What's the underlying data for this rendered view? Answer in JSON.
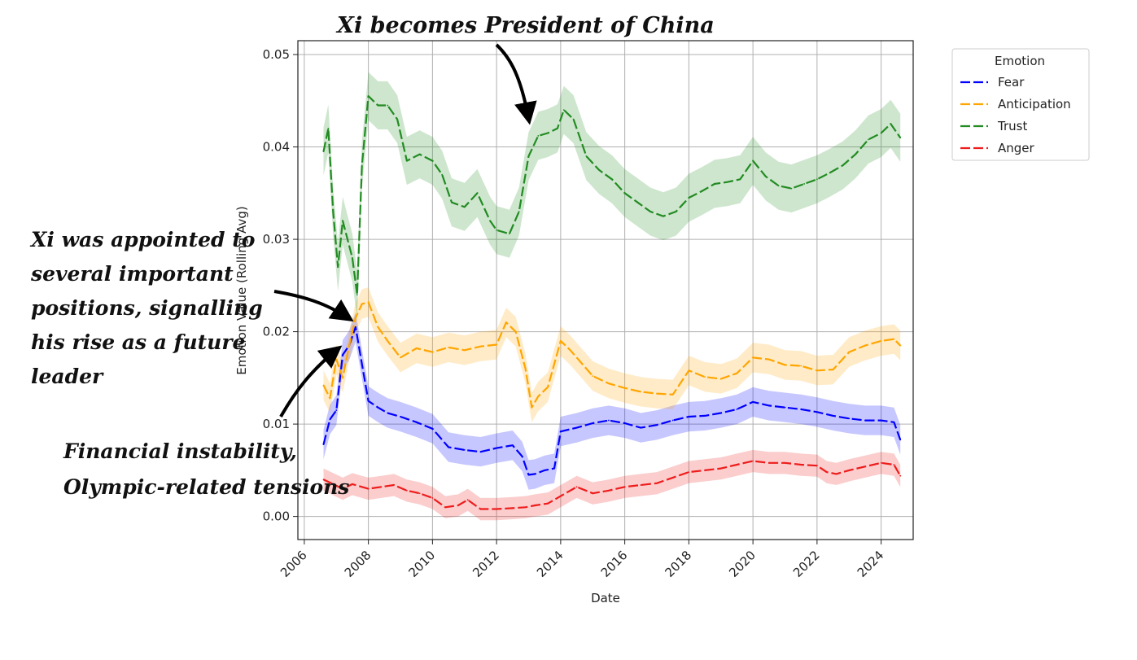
{
  "chart_data": {
    "type": "line",
    "title": "",
    "xlabel": "Date",
    "ylabel": "Emotion Value (Rolling Avg)",
    "xlim": [
      2005.8,
      2025.0
    ],
    "ylim": [
      -0.0025,
      0.0515
    ],
    "x_ticks": [
      2006,
      2008,
      2010,
      2012,
      2014,
      2016,
      2018,
      2020,
      2022,
      2024
    ],
    "x_tick_labels": [
      "2006",
      "2008",
      "2010",
      "2012",
      "2014",
      "2016",
      "2018",
      "2020",
      "2022",
      "2024"
    ],
    "y_ticks": [
      0.0,
      0.01,
      0.02,
      0.03,
      0.04,
      0.05
    ],
    "y_tick_labels": [
      "0.00",
      "0.01",
      "0.02",
      "0.03",
      "0.04",
      "0.05"
    ],
    "grid": true,
    "legend": {
      "title": "Emotion",
      "placement": "top-right-outside"
    },
    "series": [
      {
        "name": "Fear",
        "color": "#0000ff",
        "x": [
          2006.6,
          2006.8,
          2007.0,
          2007.2,
          2007.4,
          2007.6,
          2007.8,
          2008.0,
          2008.3,
          2008.6,
          2009.0,
          2009.5,
          2010.0,
          2010.5,
          2011.0,
          2011.5,
          2012.0,
          2012.5,
          2012.8,
          2013.0,
          2013.2,
          2013.5,
          2013.8,
          2014.0,
          2014.5,
          2015.0,
          2015.5,
          2016.0,
          2016.5,
          2017.0,
          2017.5,
          2018.0,
          2018.5,
          2019.0,
          2019.5,
          2020.0,
          2020.5,
          2021.0,
          2021.5,
          2022.0,
          2022.5,
          2023.0,
          2023.5,
          2024.0,
          2024.4,
          2024.6
        ],
        "values": [
          0.0078,
          0.0105,
          0.0115,
          0.0175,
          0.0185,
          0.0205,
          0.0165,
          0.0125,
          0.0118,
          0.0112,
          0.0108,
          0.0102,
          0.0095,
          0.0075,
          0.0072,
          0.007,
          0.0074,
          0.0077,
          0.0065,
          0.0045,
          0.0046,
          0.005,
          0.0052,
          0.0092,
          0.0096,
          0.0101,
          0.0104,
          0.0101,
          0.0096,
          0.0099,
          0.0104,
          0.0108,
          0.0109,
          0.0112,
          0.0116,
          0.0124,
          0.012,
          0.0118,
          0.0116,
          0.0113,
          0.0109,
          0.0106,
          0.0104,
          0.0104,
          0.0102,
          0.0083
        ],
        "band": 0.0016
      },
      {
        "name": "Anticipation",
        "color": "#ffa500",
        "x": [
          2006.6,
          2006.8,
          2007.0,
          2007.2,
          2007.4,
          2007.6,
          2007.8,
          2008.0,
          2008.3,
          2008.6,
          2009.0,
          2009.5,
          2010.0,
          2010.5,
          2011.0,
          2011.5,
          2012.0,
          2012.3,
          2012.6,
          2012.9,
          2013.1,
          2013.3,
          2013.6,
          2014.0,
          2014.3,
          2014.6,
          2015.0,
          2015.5,
          2016.0,
          2016.5,
          2017.0,
          2017.5,
          2018.0,
          2018.5,
          2019.0,
          2019.5,
          2020.0,
          2020.5,
          2021.0,
          2021.5,
          2022.0,
          2022.5,
          2023.0,
          2023.5,
          2024.0,
          2024.4,
          2024.6
        ],
        "values": [
          0.0142,
          0.0128,
          0.017,
          0.015,
          0.0185,
          0.0215,
          0.023,
          0.0232,
          0.0205,
          0.019,
          0.0172,
          0.0182,
          0.0178,
          0.0183,
          0.018,
          0.0184,
          0.0186,
          0.021,
          0.02,
          0.016,
          0.0118,
          0.013,
          0.014,
          0.019,
          0.018,
          0.0168,
          0.0152,
          0.0144,
          0.0139,
          0.0135,
          0.0133,
          0.0132,
          0.0158,
          0.0151,
          0.0149,
          0.0155,
          0.0172,
          0.017,
          0.0164,
          0.0163,
          0.0158,
          0.0159,
          0.0178,
          0.0185,
          0.019,
          0.0192,
          0.0185
        ],
        "band": 0.0016
      },
      {
        "name": "Trust",
        "color": "#228b22",
        "x": [
          2006.6,
          2006.75,
          2006.9,
          2007.05,
          2007.2,
          2007.35,
          2007.5,
          2007.65,
          2007.8,
          2008.0,
          2008.3,
          2008.6,
          2008.9,
          2009.2,
          2009.6,
          2010.0,
          2010.3,
          2010.6,
          2011.0,
          2011.4,
          2011.8,
          2012.0,
          2012.4,
          2012.7,
          2013.0,
          2013.3,
          2013.6,
          2013.9,
          2014.1,
          2014.4,
          2014.8,
          2015.2,
          2015.6,
          2016.0,
          2016.4,
          2016.8,
          2017.2,
          2017.6,
          2018.0,
          2018.4,
          2018.8,
          2019.2,
          2019.6,
          2020.0,
          2020.4,
          2020.8,
          2021.2,
          2021.6,
          2022.0,
          2022.4,
          2022.8,
          2023.2,
          2023.6,
          2024.0,
          2024.3,
          2024.6
        ],
        "values": [
          0.0395,
          0.042,
          0.033,
          0.027,
          0.032,
          0.03,
          0.028,
          0.024,
          0.038,
          0.0455,
          0.0445,
          0.0445,
          0.043,
          0.0385,
          0.0392,
          0.0385,
          0.037,
          0.034,
          0.0335,
          0.035,
          0.032,
          0.031,
          0.0306,
          0.033,
          0.039,
          0.0412,
          0.0415,
          0.042,
          0.044,
          0.043,
          0.039,
          0.0375,
          0.0365,
          0.035,
          0.034,
          0.033,
          0.0325,
          0.033,
          0.0345,
          0.0352,
          0.036,
          0.0362,
          0.0365,
          0.0385,
          0.0368,
          0.0358,
          0.0355,
          0.036,
          0.0365,
          0.0372,
          0.038,
          0.0392,
          0.0408,
          0.0415,
          0.0425,
          0.041
        ],
        "band": 0.0026
      },
      {
        "name": "Anger",
        "color": "#ee1c1c",
        "x": [
          2006.6,
          2006.9,
          2007.2,
          2007.5,
          2007.8,
          2008.0,
          2008.4,
          2008.8,
          2009.2,
          2009.6,
          2010.0,
          2010.4,
          2010.8,
          2011.1,
          2011.5,
          2012.0,
          2012.5,
          2012.9,
          2013.2,
          2013.6,
          2014.0,
          2014.5,
          2015.0,
          2015.5,
          2016.0,
          2016.5,
          2017.0,
          2017.5,
          2018.0,
          2018.5,
          2019.0,
          2019.5,
          2020.0,
          2020.5,
          2021.0,
          2021.5,
          2022.0,
          2022.3,
          2022.6,
          2023.0,
          2023.5,
          2024.0,
          2024.4,
          2024.6
        ],
        "values": [
          0.004,
          0.0035,
          0.003,
          0.0035,
          0.0032,
          0.003,
          0.0032,
          0.0034,
          0.0028,
          0.0025,
          0.002,
          0.001,
          0.0012,
          0.0018,
          0.0008,
          0.0008,
          0.0009,
          0.001,
          0.0012,
          0.0014,
          0.0022,
          0.0032,
          0.0025,
          0.0028,
          0.0032,
          0.0034,
          0.0036,
          0.0042,
          0.0048,
          0.005,
          0.0052,
          0.0056,
          0.006,
          0.0058,
          0.0058,
          0.0056,
          0.0055,
          0.0048,
          0.0046,
          0.005,
          0.0054,
          0.0058,
          0.0056,
          0.0044
        ],
        "band": 0.0012
      }
    ],
    "annotations": [
      {
        "text": "Xi becomes President of China",
        "target_x": 2013.2,
        "target_y": 0.0425
      },
      {
        "lines": [
          "Xi was appointed to",
          "several important",
          "positions, signalling",
          "his rise as a future",
          "leader"
        ],
        "target_x": 2007.6,
        "target_y": 0.0215
      },
      {
        "lines": [
          "Financial instability,",
          "Olympic-related tensions"
        ],
        "target_x": 2007.2,
        "target_y": 0.0185
      }
    ]
  }
}
